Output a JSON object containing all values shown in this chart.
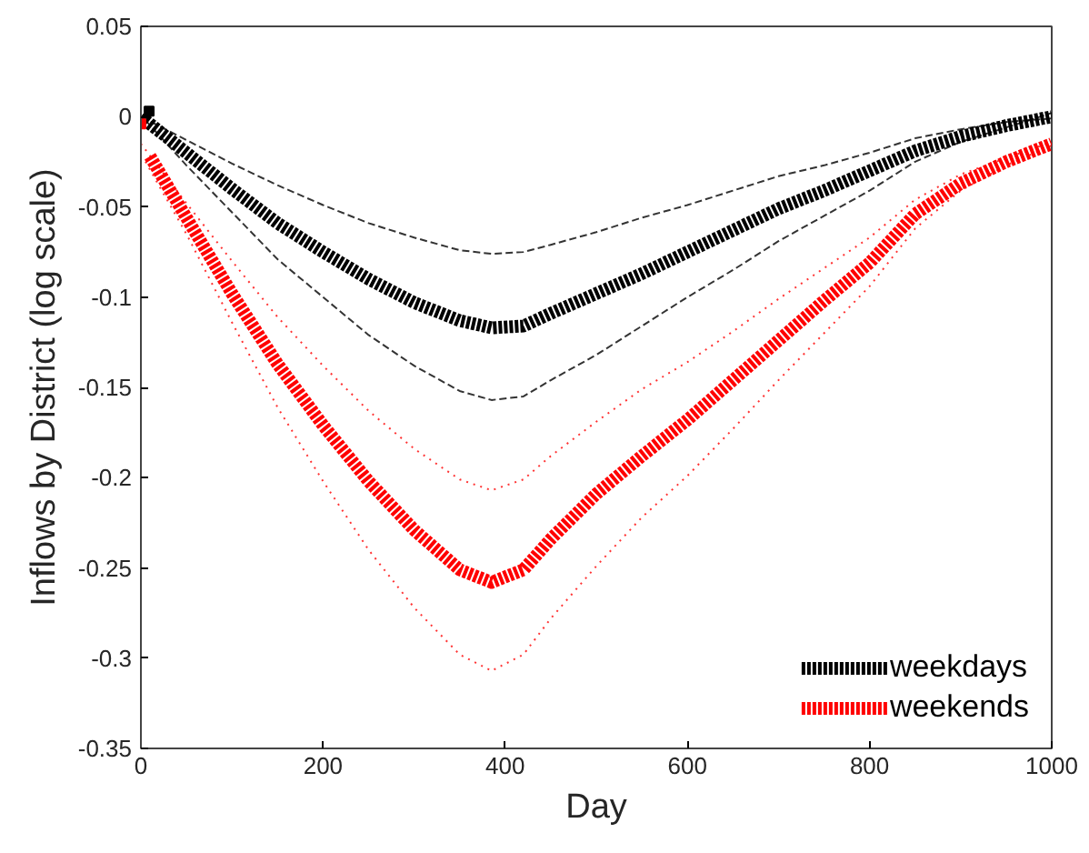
{
  "chart_data": {
    "type": "line",
    "xlabel": "Day",
    "ylabel": "Inflows by District (log scale)",
    "xlim": [
      0,
      1000
    ],
    "xticks": [
      0,
      200,
      400,
      600,
      800,
      1000
    ],
    "ylim": [
      -0.35,
      0.05
    ],
    "yticks": [
      -0.35,
      -0.3,
      -0.25,
      -0.2,
      -0.15,
      -0.1,
      -0.05,
      0,
      0.05
    ],
    "grid": false,
    "legend": "bottom right",
    "series": [
      {
        "name": "weekdays",
        "color": "#000000",
        "line_style": "dashed",
        "x": [
          0,
          50,
          100,
          150,
          200,
          250,
          300,
          350,
          385,
          420,
          450,
          500,
          550,
          600,
          650,
          700,
          750,
          800,
          850,
          900,
          950,
          1000
        ],
        "values": [
          0,
          -0.02,
          -0.04,
          -0.059,
          -0.075,
          -0.09,
          -0.103,
          -0.113,
          -0.117,
          -0.116,
          -0.109,
          -0.098,
          -0.087,
          -0.075,
          -0.063,
          -0.051,
          -0.041,
          -0.03,
          -0.019,
          -0.011,
          -0.005,
          0
        ]
      },
      {
        "name": "weekends",
        "color": "#ff0000",
        "line_style": "dashed",
        "x": [
          10,
          50,
          100,
          150,
          200,
          250,
          300,
          350,
          385,
          420,
          450,
          500,
          550,
          600,
          650,
          700,
          750,
          800,
          850,
          900,
          950,
          1000
        ],
        "values": [
          -0.022,
          -0.056,
          -0.098,
          -0.137,
          -0.171,
          -0.202,
          -0.229,
          -0.251,
          -0.258,
          -0.251,
          -0.234,
          -0.209,
          -0.188,
          -0.168,
          -0.146,
          -0.124,
          -0.102,
          -0.081,
          -0.054,
          -0.037,
          -0.025,
          -0.015
        ]
      },
      {
        "color": "#000000",
        "line_style": "dashed",
        "x": [
          0,
          50,
          100,
          150,
          200,
          250,
          300,
          350,
          385,
          420,
          450,
          500,
          550,
          600,
          650,
          700,
          750,
          800,
          850,
          900,
          950,
          1000
        ],
        "values": [
          0,
          -0.013,
          -0.026,
          -0.038,
          -0.049,
          -0.059,
          -0.067,
          -0.074,
          -0.076,
          -0.075,
          -0.071,
          -0.064,
          -0.056,
          -0.049,
          -0.041,
          -0.033,
          -0.027,
          -0.02,
          -0.012,
          -0.007,
          -0.003,
          -0.001
        ]
      },
      {
        "color": "#000000",
        "line_style": "dashed",
        "x": [
          5,
          50,
          100,
          150,
          200,
          250,
          300,
          350,
          385,
          420,
          450,
          500,
          550,
          600,
          650,
          700,
          750,
          800,
          850,
          900,
          950,
          1000
        ],
        "values": [
          -0.002,
          -0.027,
          -0.053,
          -0.079,
          -0.1,
          -0.121,
          -0.138,
          -0.152,
          -0.157,
          -0.155,
          -0.146,
          -0.132,
          -0.116,
          -0.1,
          -0.085,
          -0.069,
          -0.055,
          -0.041,
          -0.025,
          -0.014,
          -0.006,
          0.002
        ]
      },
      {
        "color": "#ff0000",
        "line_style": "dotted",
        "x": [
          0,
          50,
          100,
          150,
          200,
          250,
          300,
          350,
          385,
          420,
          450,
          500,
          550,
          600,
          650,
          700,
          750,
          800,
          850,
          900,
          950,
          1000
        ],
        "values": [
          -0.015,
          -0.048,
          -0.08,
          -0.111,
          -0.138,
          -0.163,
          -0.184,
          -0.201,
          -0.207,
          -0.201,
          -0.188,
          -0.169,
          -0.151,
          -0.136,
          -0.119,
          -0.101,
          -0.084,
          -0.067,
          -0.046,
          -0.032,
          -0.023,
          -0.014
        ]
      },
      {
        "color": "#ff0000",
        "line_style": "dotted",
        "x": [
          5,
          50,
          100,
          150,
          200,
          250,
          300,
          350,
          385,
          420,
          450,
          500,
          550,
          600,
          650,
          700,
          750,
          800,
          850,
          900,
          950,
          1000
        ],
        "values": [
          -0.025,
          -0.065,
          -0.114,
          -0.161,
          -0.202,
          -0.24,
          -0.272,
          -0.298,
          -0.307,
          -0.298,
          -0.278,
          -0.249,
          -0.222,
          -0.199,
          -0.173,
          -0.146,
          -0.12,
          -0.094,
          -0.062,
          -0.041,
          -0.027,
          -0.016
        ]
      },
      {
        "type": "scatter",
        "marker": "square",
        "color": "#ff0000",
        "x": [
          0
        ],
        "values": [
          -0.004
        ]
      },
      {
        "type": "scatter",
        "marker": "square",
        "color": "#000000",
        "x": [
          9
        ],
        "values": [
          0.003
        ]
      }
    ]
  }
}
